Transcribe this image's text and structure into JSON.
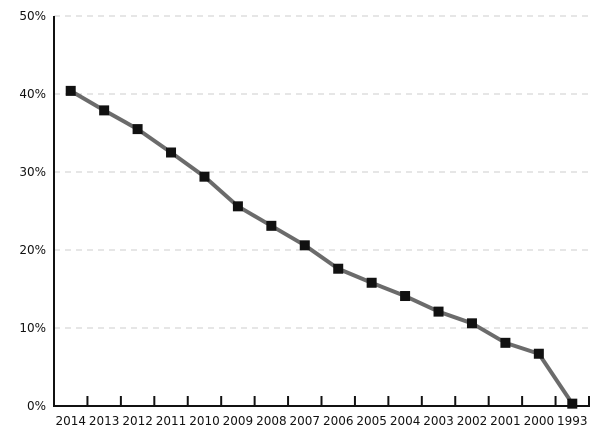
{
  "chart_data": {
    "type": "line",
    "title": "",
    "xlabel": "",
    "ylabel": "",
    "categories": [
      "2014",
      "2013",
      "2012",
      "2011",
      "2010",
      "2009",
      "2008",
      "2007",
      "2006",
      "2005",
      "2004",
      "2003",
      "2002",
      "2001",
      "2000",
      "1993"
    ],
    "series": [
      {
        "values": [
          40.4,
          37.9,
          35.5,
          32.5,
          29.4,
          25.6,
          23.1,
          20.6,
          17.6,
          15.8,
          14.1,
          12.1,
          10.6,
          8.1,
          6.7,
          0.3
        ]
      }
    ],
    "ylim": [
      0,
      50
    ],
    "yticks": [
      0,
      10,
      20,
      30,
      40,
      50
    ],
    "ytick_labels": [
      "0%",
      "10%",
      "20%",
      "30%",
      "40%",
      "50%"
    ],
    "grid": "horizontal dashed",
    "legend": "none",
    "colors": {
      "line": "#6b6b6b",
      "marker": "#111111",
      "grid": "#cccccc",
      "axis": "#111111"
    }
  }
}
